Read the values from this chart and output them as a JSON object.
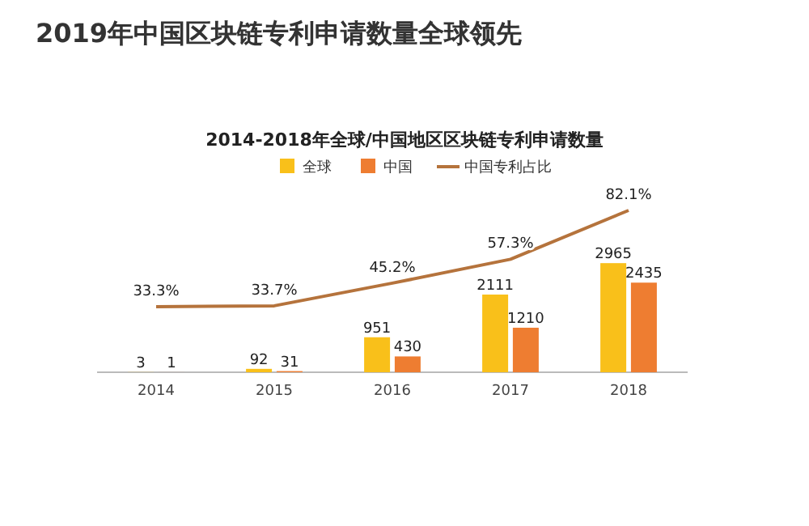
{
  "chart_data": {
    "type": "bar",
    "title": "2019年中国区块链专利申请数量全球领先",
    "subtitle": "2014-2018年全球/中国地区区块链专利申请数量",
    "categories": [
      "2014",
      "2015",
      "2016",
      "2017",
      "2018"
    ],
    "series": [
      {
        "name": "全球",
        "color": "#f9c01a",
        "values": [
          3,
          92,
          951,
          2111,
          2965
        ]
      },
      {
        "name": "中国",
        "color": "#ee7d31",
        "values": [
          1,
          31,
          430,
          1210,
          2435
        ]
      },
      {
        "name": "中国专利占比",
        "type": "line",
        "axis": "y2",
        "color": "#b5733c",
        "values": [
          33.3,
          33.7,
          45.2,
          57.3,
          82.1
        ],
        "value_labels": [
          "33.3%",
          "33.7%",
          "45.2%",
          "57.3%",
          "82.1%"
        ]
      }
    ],
    "tick_labels": "x",
    "data_labels": true,
    "legend": "top",
    "marker": "none"
  }
}
